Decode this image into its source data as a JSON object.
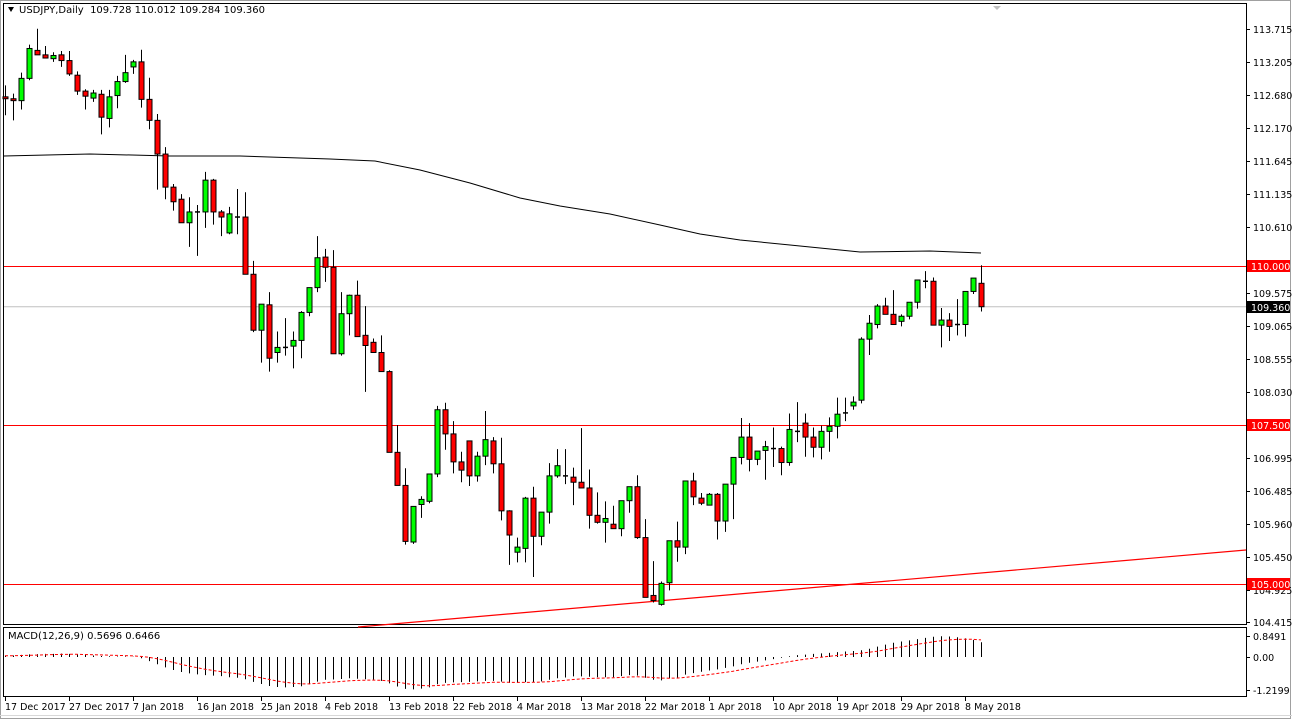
{
  "header": {
    "symbol": "USDJPY,Daily",
    "ohlc": "109.728 110.012 109.284 109.360",
    "text": "USDJPY,Daily  109.728 110.012 109.284 109.360"
  },
  "macd": {
    "label": "MACD(12,26,9) 0.5696 0.6466",
    "axis_labels": [
      "0.8491",
      "0.00",
      "-1.2199"
    ]
  },
  "price_axis": {
    "labels": [
      "113.715",
      "113.205",
      "112.680",
      "112.170",
      "111.645",
      "111.135",
      "110.610",
      "109.575",
      "109.065",
      "108.555",
      "108.030",
      "106.995",
      "106.485",
      "105.960",
      "105.450",
      "104.925",
      "104.415"
    ],
    "current_price": "109.360",
    "levels": [
      "110.000",
      "107.500",
      "105.000"
    ]
  },
  "time_axis": {
    "labels": [
      "17 Dec 2017",
      "27 Dec 2017",
      "7 Jan 2018",
      "16 Jan 2018",
      "25 Jan 2018",
      "4 Feb 2018",
      "13 Feb 2018",
      "22 Feb 2018",
      "4 Mar 2018",
      "13 Mar 2018",
      "22 Mar 2018",
      "1 Apr 2018",
      "10 Apr 2018",
      "19 Apr 2018",
      "29 Apr 2018",
      "8 May 2018"
    ]
  },
  "colors": {
    "bull": "#00ff00",
    "bear": "#ff0000",
    "level_line": "#ff0000",
    "moving_average": "#000000",
    "bid_line": "#c0c0c0",
    "macd_signal": "#ff0000"
  },
  "chart_data": {
    "type": "candlestick",
    "title": "USDJPY,Daily",
    "ylim": [
      104.415,
      113.715
    ],
    "xlabel": "",
    "ylabel": "",
    "grid": false,
    "x_tick_labels": [
      "17 Dec 2017",
      "27 Dec 2017",
      "7 Jan 2018",
      "16 Jan 2018",
      "25 Jan 2018",
      "4 Feb 2018",
      "13 Feb 2018",
      "22 Feb 2018",
      "4 Mar 2018",
      "13 Mar 2018",
      "22 Mar 2018",
      "1 Apr 2018",
      "10 Apr 2018",
      "19 Apr 2018",
      "29 Apr 2018",
      "8 May 2018"
    ],
    "last_bar": {
      "open": 109.728,
      "high": 110.012,
      "low": 109.284,
      "close": 109.36
    },
    "horizontal_levels": [
      110.0,
      107.5,
      105.0
    ],
    "candles_ohlc": [
      [
        112.66,
        112.84,
        112.37,
        112.63
      ],
      [
        112.63,
        112.71,
        112.29,
        112.6
      ],
      [
        112.6,
        113.04,
        112.46,
        112.95
      ],
      [
        112.95,
        113.48,
        112.92,
        113.42
      ],
      [
        113.39,
        113.73,
        113.34,
        113.32
      ],
      [
        113.32,
        113.46,
        113.29,
        113.27
      ],
      [
        113.26,
        113.36,
        113.21,
        113.31
      ],
      [
        113.32,
        113.38,
        113.13,
        113.23
      ],
      [
        113.23,
        113.38,
        112.99,
        113.02
      ],
      [
        113.0,
        113.06,
        112.69,
        112.75
      ],
      [
        112.75,
        112.78,
        112.46,
        112.67
      ],
      [
        112.64,
        112.77,
        112.58,
        112.72
      ],
      [
        112.7,
        112.77,
        112.07,
        112.34
      ],
      [
        112.32,
        112.77,
        112.18,
        112.66
      ],
      [
        112.68,
        112.99,
        112.48,
        112.9
      ],
      [
        112.9,
        113.32,
        112.88,
        113.04
      ],
      [
        113.13,
        113.24,
        113.02,
        113.21
      ],
      [
        113.21,
        113.4,
        112.49,
        112.62
      ],
      [
        112.62,
        112.96,
        112.15,
        112.29
      ],
      [
        112.29,
        112.39,
        111.2,
        111.76
      ],
      [
        111.76,
        111.87,
        111.05,
        111.24
      ],
      [
        111.24,
        111.29,
        110.87,
        111.01
      ],
      [
        111.05,
        111.13,
        110.68,
        110.68
      ],
      [
        110.68,
        111.08,
        110.3,
        110.85
      ],
      [
        110.85,
        110.96,
        110.16,
        110.85
      ],
      [
        110.85,
        111.48,
        110.6,
        111.35
      ],
      [
        111.35,
        111.37,
        110.65,
        110.85
      ],
      [
        110.85,
        110.88,
        110.47,
        110.77
      ],
      [
        110.52,
        110.93,
        110.5,
        110.82
      ],
      [
        110.77,
        111.21,
        110.5,
        110.77
      ],
      [
        110.77,
        111.16,
        109.87,
        109.87
      ],
      [
        109.87,
        110.08,
        108.96,
        108.99
      ],
      [
        108.99,
        109.4,
        108.48,
        109.4
      ],
      [
        109.39,
        109.59,
        108.34,
        108.55
      ],
      [
        108.64,
        108.97,
        108.48,
        108.72
      ],
      [
        108.72,
        109.18,
        108.59,
        108.72
      ],
      [
        108.74,
        108.97,
        108.39,
        108.83
      ],
      [
        108.83,
        109.29,
        108.55,
        109.27
      ],
      [
        109.27,
        109.66,
        109.21,
        109.66
      ],
      [
        109.66,
        110.47,
        109.59,
        110.13
      ],
      [
        110.14,
        110.27,
        109.75,
        109.98
      ],
      [
        109.98,
        110.25,
        108.62,
        108.62
      ],
      [
        108.62,
        109.59,
        108.59,
        109.25
      ],
      [
        109.25,
        109.55,
        108.91,
        109.54
      ],
      [
        109.54,
        109.77,
        108.91,
        108.89
      ],
      [
        108.91,
        109.37,
        108.02,
        108.75
      ],
      [
        108.8,
        108.86,
        108.75,
        108.64
      ],
      [
        108.64,
        108.91,
        108.61,
        108.34
      ],
      [
        108.34,
        108.36,
        107.07,
        107.07
      ],
      [
        107.07,
        107.5,
        106.77,
        106.55
      ],
      [
        106.55,
        106.82,
        105.62,
        105.67
      ],
      [
        105.66,
        105.79,
        105.63,
        106.22
      ],
      [
        106.25,
        106.38,
        106.04,
        106.33
      ],
      [
        106.3,
        106.38,
        106.27,
        106.73
      ],
      [
        106.73,
        107.8,
        106.68,
        107.74
      ],
      [
        107.74,
        107.85,
        107.11,
        107.36
      ],
      [
        107.36,
        107.56,
        106.74,
        106.92
      ],
      [
        106.92,
        107.08,
        106.6,
        106.79
      ],
      [
        107.25,
        107.22,
        106.54,
        106.7
      ],
      [
        106.7,
        107.08,
        106.61,
        107.01
      ],
      [
        107.01,
        107.72,
        106.87,
        107.27
      ],
      [
        107.25,
        107.31,
        106.74,
        106.89
      ],
      [
        106.89,
        107.3,
        106.0,
        106.15
      ],
      [
        106.15,
        106.16,
        105.3,
        105.77
      ],
      [
        105.5,
        105.73,
        105.34,
        105.58
      ],
      [
        105.56,
        106.37,
        105.34,
        106.35
      ],
      [
        106.35,
        106.53,
        105.11,
        105.75
      ],
      [
        105.75,
        106.03,
        105.61,
        106.13
      ],
      [
        106.13,
        106.9,
        105.95,
        106.7
      ],
      [
        106.7,
        107.12,
        106.67,
        106.86
      ],
      [
        106.7,
        107.12,
        106.57,
        106.7
      ],
      [
        106.68,
        106.83,
        106.24,
        106.6
      ],
      [
        106.6,
        107.45,
        106.51,
        106.51
      ],
      [
        106.51,
        106.8,
        105.87,
        106.08
      ],
      [
        106.08,
        106.44,
        105.95,
        105.97
      ],
      [
        105.97,
        106.3,
        105.65,
        106.03
      ],
      [
        105.94,
        106.23,
        105.87,
        105.87
      ],
      [
        105.87,
        106.31,
        105.75,
        106.31
      ],
      [
        106.31,
        106.53,
        106.12,
        106.53
      ],
      [
        106.53,
        106.71,
        105.71,
        105.73
      ],
      [
        105.73,
        106.02,
        104.79,
        104.79
      ],
      [
        104.82,
        105.36,
        104.71,
        104.74
      ],
      [
        104.68,
        105.04,
        104.66,
        105.01
      ],
      [
        105.02,
        105.68,
        104.9,
        105.68
      ],
      [
        105.68,
        105.98,
        105.35,
        105.58
      ],
      [
        105.58,
        106.62,
        105.47,
        106.62
      ],
      [
        106.62,
        106.75,
        106.24,
        106.37
      ],
      [
        106.35,
        106.43,
        106.24,
        106.27
      ],
      [
        106.24,
        106.43,
        106.24,
        106.41
      ],
      [
        106.41,
        106.43,
        105.7,
        105.99
      ],
      [
        105.99,
        106.57,
        105.82,
        106.57
      ],
      [
        106.57,
        106.99,
        106.02,
        106.99
      ],
      [
        106.99,
        107.61,
        106.88,
        107.31
      ],
      [
        107.31,
        107.53,
        106.77,
        106.96
      ],
      [
        106.96,
        107.09,
        106.87,
        107.09
      ],
      [
        107.1,
        107.25,
        106.64,
        107.16
      ],
      [
        107.13,
        107.46,
        106.84,
        107.13
      ],
      [
        107.13,
        107.16,
        106.71,
        106.91
      ],
      [
        106.91,
        107.68,
        106.86,
        107.43
      ],
      [
        107.4,
        107.86,
        107.23,
        107.4
      ],
      [
        107.53,
        107.68,
        107.0,
        107.31
      ],
      [
        107.31,
        107.46,
        106.99,
        107.15
      ],
      [
        107.15,
        107.49,
        106.96,
        107.4
      ],
      [
        107.4,
        107.62,
        107.08,
        107.48
      ],
      [
        107.48,
        107.93,
        107.29,
        107.67
      ],
      [
        107.69,
        107.93,
        107.56,
        107.69
      ],
      [
        107.8,
        107.95,
        107.74,
        107.86
      ],
      [
        107.89,
        108.88,
        107.84,
        108.85
      ],
      [
        108.85,
        109.23,
        108.6,
        109.1
      ],
      [
        109.08,
        109.4,
        109.02,
        109.37
      ],
      [
        109.37,
        109.5,
        109.24,
        109.24
      ],
      [
        109.24,
        109.62,
        109.16,
        109.08
      ],
      [
        109.13,
        109.24,
        109.05,
        109.21
      ],
      [
        109.21,
        109.4,
        109.16,
        109.43
      ],
      [
        109.43,
        109.65,
        109.33,
        109.78
      ],
      [
        109.76,
        109.92,
        109.65,
        109.76
      ],
      [
        109.76,
        109.82,
        109.09,
        109.07
      ],
      [
        109.07,
        109.34,
        108.72,
        109.15
      ],
      [
        109.15,
        109.26,
        108.82,
        109.05
      ],
      [
        109.08,
        109.48,
        108.91,
        109.08
      ],
      [
        109.08,
        109.6,
        108.89,
        109.6
      ],
      [
        109.6,
        109.79,
        109.56,
        109.81
      ],
      [
        109.728,
        110.012,
        109.284,
        109.36
      ]
    ],
    "moving_average": {
      "description": "long-period moving average (black line)",
      "approx_values": [
        111.76,
        111.79,
        111.79,
        111.76,
        111.68,
        111.42,
        111.06,
        110.53,
        110.29,
        110.22,
        110.22
      ]
    },
    "trendline": {
      "from": {
        "x_index": 44,
        "price": 104.36
      },
      "to": {
        "x_index": "right edge",
        "price": 105.57
      }
    },
    "macd_panel": {
      "indicator": "MACD(12,26,9)",
      "main": 0.5696,
      "signal": 0.6466,
      "ylim": [
        -1.2199,
        0.8491
      ]
    }
  }
}
